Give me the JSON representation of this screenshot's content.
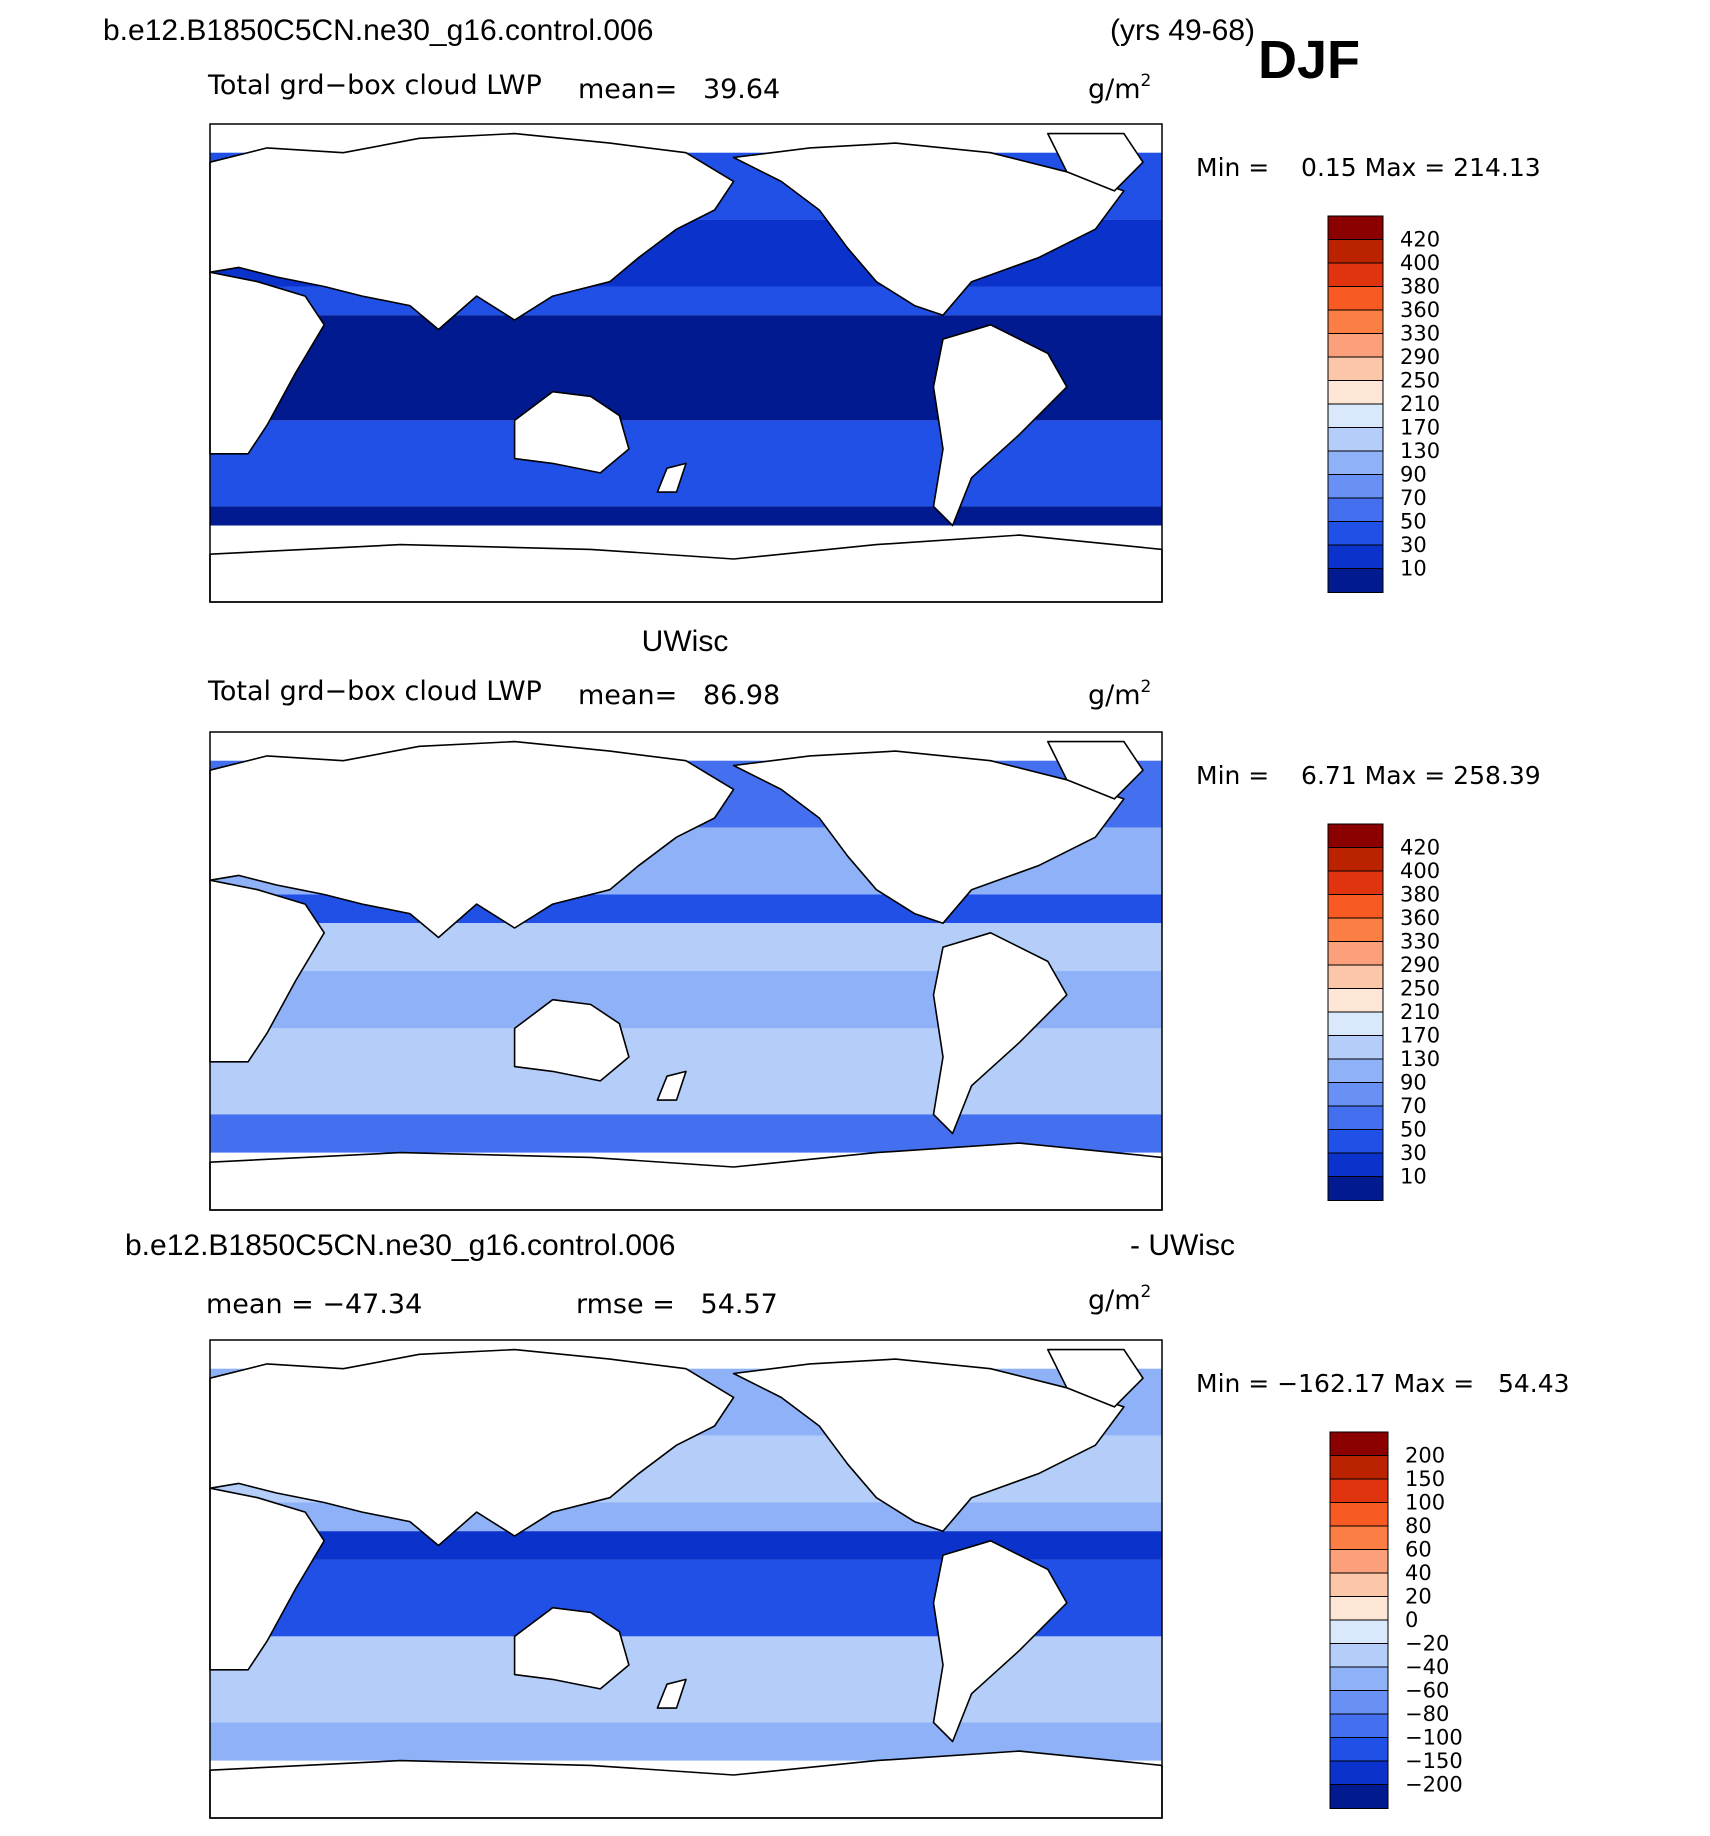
{
  "header": {
    "case_name": "b.e12.B1850C5CN.ne30_g16.control.006",
    "years": "(yrs 49-68)",
    "season": "DJF"
  },
  "chart_data": [
    {
      "type": "map",
      "title": "",
      "subtitle": "Total grd−box cloud LWP",
      "stats_text": "mean=   39.64",
      "units_base": "g/m",
      "units_exp": "2",
      "minmax_text": "Min =    0.15 Max = 214.13",
      "mean": 39.64,
      "min": 0.15,
      "max": 214.13,
      "colorbar_levels": [
        "420",
        "400",
        "380",
        "360",
        "330",
        "290",
        "250",
        "210",
        "170",
        "130",
        "90",
        "70",
        "50",
        "30",
        "10"
      ],
      "colorbar_colors": [
        "#8b0000",
        "#bb2200",
        "#e03410",
        "#f75a22",
        "#fb7f45",
        "#fba07a",
        "#fcc6a8",
        "#fde6d6",
        "#d9e9fb",
        "#b4cef9",
        "#8fb1f8",
        "#6890f5",
        "#4470f0",
        "#2150e6",
        "#0b33cc",
        "#011a8f"
      ],
      "map_palette": {
        "ocean_light": "#4470f0",
        "ocean_mid": "#2150e6",
        "ocean_dark": "#0b33cc",
        "ocean_deep": "#011a8f",
        "land": "#ffffff"
      }
    },
    {
      "type": "map",
      "title": "UWisc",
      "subtitle": "Total grd−box cloud LWP",
      "stats_text": "mean=   86.98",
      "units_base": "g/m",
      "units_exp": "2",
      "minmax_text": "Min =    6.71 Max = 258.39",
      "mean": 86.98,
      "min": 6.71,
      "max": 258.39,
      "colorbar_levels": [
        "420",
        "400",
        "380",
        "360",
        "330",
        "290",
        "250",
        "210",
        "170",
        "130",
        "90",
        "70",
        "50",
        "30",
        "10"
      ],
      "colorbar_colors": [
        "#8b0000",
        "#bb2200",
        "#e03410",
        "#f75a22",
        "#fb7f45",
        "#fba07a",
        "#fcc6a8",
        "#fde6d6",
        "#d9e9fb",
        "#b4cef9",
        "#8fb1f8",
        "#6890f5",
        "#4470f0",
        "#2150e6",
        "#0b33cc",
        "#011a8f"
      ],
      "map_palette": {
        "ocean_light": "#b4cef9",
        "ocean_mid": "#8fb1f8",
        "ocean_dark": "#4470f0",
        "ocean_deep": "#2150e6",
        "land": "#ffffff"
      }
    },
    {
      "type": "map",
      "title_left": "b.e12.B1850C5CN.ne30_g16.control.006",
      "title_right": "- UWisc",
      "stats_mean_text": "mean = −47.34",
      "stats_rmse_text": "rmse =   54.57",
      "units_base": "g/m",
      "units_exp": "2",
      "minmax_text": "Min = −162.17 Max =   54.43",
      "mean": -47.34,
      "rmse": 54.57,
      "min": -162.17,
      "max": 54.43,
      "colorbar_levels": [
        "200",
        "150",
        "100",
        "80",
        "60",
        "40",
        "20",
        "0",
        "−20",
        "−40",
        "−60",
        "−80",
        "−100",
        "−150",
        "−200"
      ],
      "colorbar_colors": [
        "#8b0000",
        "#bb2200",
        "#e03410",
        "#f75a22",
        "#fb7f45",
        "#fba07a",
        "#fcc6a8",
        "#fde6d6",
        "#d9e9fb",
        "#b4cef9",
        "#8fb1f8",
        "#6890f5",
        "#4470f0",
        "#2150e6",
        "#0b33cc",
        "#011a8f"
      ],
      "map_palette": {
        "ocean_light": "#b4cef9",
        "ocean_mid": "#8fb1f8",
        "ocean_dark": "#2150e6",
        "ocean_deep": "#0b33cc",
        "land": "#ffffff"
      }
    }
  ]
}
